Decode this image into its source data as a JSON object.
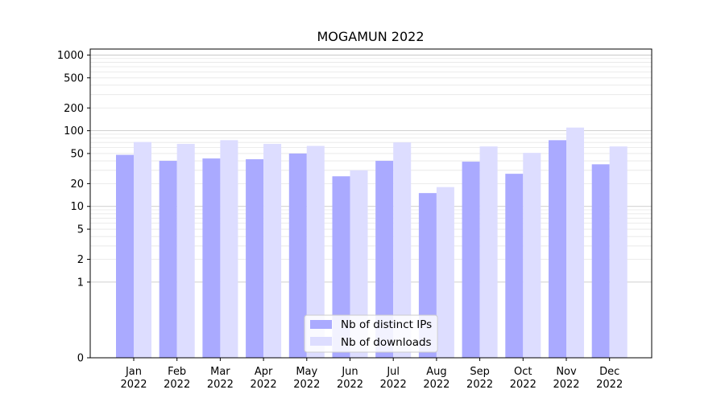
{
  "chart_data": {
    "type": "bar",
    "title": "MOGAMUN 2022",
    "xlabel": "",
    "ylabel": "",
    "yscale": "symlog",
    "ylim": [
      0,
      1200
    ],
    "yticks": [
      0,
      1,
      2,
      5,
      10,
      20,
      50,
      100,
      200,
      500,
      1000
    ],
    "grid": true,
    "legend_position": "lower-center",
    "categories": [
      "Jan\n2022",
      "Feb\n2022",
      "Mar\n2022",
      "Apr\n2022",
      "May\n2022",
      "Jun\n2022",
      "Jul\n2022",
      "Aug\n2022",
      "Sep\n2022",
      "Oct\n2022",
      "Nov\n2022",
      "Dec\n2022"
    ],
    "series": [
      {
        "name": "Nb of distinct IPs",
        "color": "#aaaaff",
        "values": [
          48,
          40,
          43,
          42,
          50,
          25,
          40,
          15,
          39,
          27,
          75,
          36
        ]
      },
      {
        "name": "Nb of downloads",
        "color": "#ddddff",
        "values": [
          71,
          67,
          75,
          67,
          63,
          30,
          70,
          18,
          62,
          51,
          110,
          62
        ]
      }
    ]
  }
}
